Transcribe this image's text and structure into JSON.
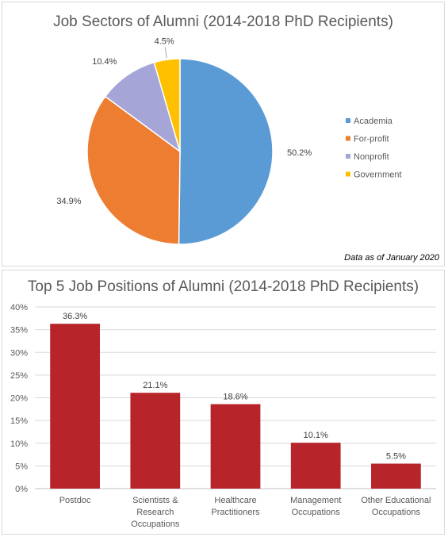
{
  "chart_data": [
    {
      "type": "pie",
      "title": "Job Sectors of Alumni (2014-2018 PhD Recipients)",
      "categories": [
        "Academia",
        "For-profit",
        "Nonprofit",
        "Government"
      ],
      "values": [
        50.2,
        34.9,
        10.4,
        4.5
      ],
      "data_labels": [
        "50.2%",
        "34.9%",
        "10.4%",
        "4.5%"
      ],
      "colors": [
        "#5b9bd5",
        "#ed7d31",
        "#a5a5d8",
        "#ffc000"
      ],
      "legend": {
        "position": "right",
        "entries": [
          "Academia",
          "For-profit",
          "Nonprofit",
          "Government"
        ]
      },
      "annotation": "Data as of January 2020"
    },
    {
      "type": "bar",
      "title": "Top 5 Job Positions of Alumni (2014-2018 PhD Recipients)",
      "categories": [
        "Postdoc",
        "Scientists & Research Occupations",
        "Healthcare Practitioners",
        "Management Occupations",
        "Other Educational Occupations"
      ],
      "category_lines": [
        [
          "Postdoc"
        ],
        [
          "Scientists &",
          "Research",
          "Occupations"
        ],
        [
          "Healthcare",
          "Practitioners"
        ],
        [
          "Management",
          "Occupations"
        ],
        [
          "Other Educational",
          "Occupations"
        ]
      ],
      "values": [
        36.3,
        21.1,
        18.6,
        10.1,
        5.5
      ],
      "data_labels": [
        "36.3%",
        "21.1%",
        "18.6%",
        "10.1%",
        "5.5%"
      ],
      "ylim": [
        0,
        40
      ],
      "yticks": [
        "0%",
        "5%",
        "10%",
        "15%",
        "20%",
        "25%",
        "30%",
        "35%",
        "40%"
      ],
      "grid": true,
      "bar_color": "#b7242a"
    }
  ]
}
